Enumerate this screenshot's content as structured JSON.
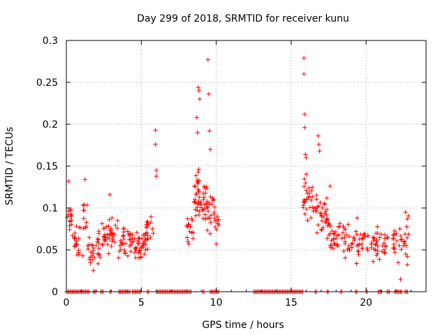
{
  "chart_data": {
    "type": "scatter",
    "title": "Day 299 of 2018, SRMTID for receiver kunu",
    "xlabel": "GPS time / hours",
    "ylabel": "SRMTID / TECUs",
    "xlim": [
      0,
      24
    ],
    "ylim": [
      0,
      0.3
    ],
    "x_ticks": [
      0,
      5,
      10,
      15,
      20
    ],
    "x_tick_labels": [
      "0",
      "5",
      "10",
      "15",
      "20"
    ],
    "y_ticks": [
      0,
      0.05,
      0.1,
      0.15,
      0.2,
      0.25,
      0.3
    ],
    "y_tick_labels": [
      "0",
      "0.05",
      "0.1",
      "0.15",
      "0.2",
      "0.25",
      "0.3"
    ],
    "grid": true,
    "marker": "+",
    "color": "#ff0000",
    "series": [
      {
        "name": "SRMTID",
        "segments": [
          {
            "x_start": 0.0,
            "x_end": 0.35,
            "y_low": 0.07,
            "y_high": 0.11,
            "n": 14
          },
          {
            "x_start": 0.4,
            "x_end": 1.1,
            "y_low": 0.035,
            "y_high": 0.09,
            "n": 20
          },
          {
            "x_start": 1.1,
            "x_end": 1.4,
            "y_low": 0.06,
            "y_high": 0.135,
            "n": 10
          },
          {
            "x_start": 1.4,
            "x_end": 2.3,
            "y_low": 0.02,
            "y_high": 0.08,
            "n": 30
          },
          {
            "x_start": 2.3,
            "x_end": 3.5,
            "y_low": 0.035,
            "y_high": 0.095,
            "n": 40
          },
          {
            "x_start": 3.5,
            "x_end": 4.5,
            "y_low": 0.03,
            "y_high": 0.09,
            "n": 35
          },
          {
            "x_start": 4.5,
            "x_end": 5.3,
            "y_low": 0.025,
            "y_high": 0.085,
            "n": 35
          },
          {
            "x_start": 5.3,
            "x_end": 5.8,
            "y_low": 0.04,
            "y_high": 0.105,
            "n": 18
          },
          {
            "x_start": 8.0,
            "x_end": 8.5,
            "y_low": 0.04,
            "y_high": 0.11,
            "n": 15
          },
          {
            "x_start": 8.5,
            "x_end": 9.2,
            "y_low": 0.07,
            "y_high": 0.16,
            "n": 40
          },
          {
            "x_start": 9.2,
            "x_end": 9.9,
            "y_low": 0.055,
            "y_high": 0.15,
            "n": 30
          },
          {
            "x_start": 9.9,
            "x_end": 10.2,
            "y_low": 0.06,
            "y_high": 0.1,
            "n": 8
          },
          {
            "x_start": 15.8,
            "x_end": 16.6,
            "y_low": 0.07,
            "y_high": 0.15,
            "n": 30
          },
          {
            "x_start": 16.6,
            "x_end": 17.4,
            "y_low": 0.06,
            "y_high": 0.13,
            "n": 30
          },
          {
            "x_start": 17.4,
            "x_end": 18.5,
            "y_low": 0.04,
            "y_high": 0.1,
            "n": 35
          },
          {
            "x_start": 18.5,
            "x_end": 20.0,
            "y_low": 0.03,
            "y_high": 0.09,
            "n": 40
          },
          {
            "x_start": 20.0,
            "x_end": 21.5,
            "y_low": 0.025,
            "y_high": 0.09,
            "n": 40
          },
          {
            "x_start": 21.8,
            "x_end": 22.9,
            "y_low": 0.02,
            "y_high": 0.1,
            "n": 35
          }
        ],
        "notable_points": [
          {
            "x": 0.15,
            "y": 0.132
          },
          {
            "x": 1.25,
            "y": 0.134
          },
          {
            "x": 2.9,
            "y": 0.116
          },
          {
            "x": 5.95,
            "y": 0.193
          },
          {
            "x": 5.95,
            "y": 0.176
          },
          {
            "x": 6.0,
            "y": 0.145
          },
          {
            "x": 6.0,
            "y": 0.138
          },
          {
            "x": 8.7,
            "y": 0.208
          },
          {
            "x": 8.75,
            "y": 0.19
          },
          {
            "x": 8.8,
            "y": 0.244
          },
          {
            "x": 8.85,
            "y": 0.24
          },
          {
            "x": 8.9,
            "y": 0.23
          },
          {
            "x": 9.45,
            "y": 0.277
          },
          {
            "x": 9.5,
            "y": 0.236
          },
          {
            "x": 9.55,
            "y": 0.192
          },
          {
            "x": 9.6,
            "y": 0.17
          },
          {
            "x": 10.0,
            "y": 0.057
          },
          {
            "x": 15.85,
            "y": 0.279
          },
          {
            "x": 15.85,
            "y": 0.26
          },
          {
            "x": 15.9,
            "y": 0.212
          },
          {
            "x": 15.9,
            "y": 0.196
          },
          {
            "x": 15.95,
            "y": 0.164
          },
          {
            "x": 16.0,
            "y": 0.16
          },
          {
            "x": 16.8,
            "y": 0.186
          },
          {
            "x": 16.85,
            "y": 0.176
          },
          {
            "x": 16.9,
            "y": 0.168
          },
          {
            "x": 17.6,
            "y": 0.126
          },
          {
            "x": 19.4,
            "y": 0.088
          },
          {
            "x": 22.3,
            "y": 0.015
          }
        ],
        "zero_intervals": [
          [
            0.0,
            1.6
          ],
          [
            1.8,
            2.0
          ],
          [
            2.3,
            2.5
          ],
          [
            2.9,
            3.0
          ],
          [
            3.5,
            3.6
          ],
          [
            3.6,
            4.3
          ],
          [
            4.4,
            5.0
          ],
          [
            5.4,
            5.5
          ],
          [
            6.0,
            8.4
          ],
          [
            9.1,
            9.2
          ],
          [
            9.6,
            10.2
          ],
          [
            12.5,
            15.8
          ],
          [
            16.6,
            16.7
          ],
          [
            17.4,
            17.5
          ],
          [
            18.3,
            18.4
          ],
          [
            19.3,
            19.4
          ],
          [
            20.0,
            20.1
          ],
          [
            20.8,
            21.1
          ],
          [
            21.4,
            21.6
          ],
          [
            21.9,
            22.4
          ],
          [
            22.6,
            22.8
          ]
        ]
      }
    ]
  }
}
